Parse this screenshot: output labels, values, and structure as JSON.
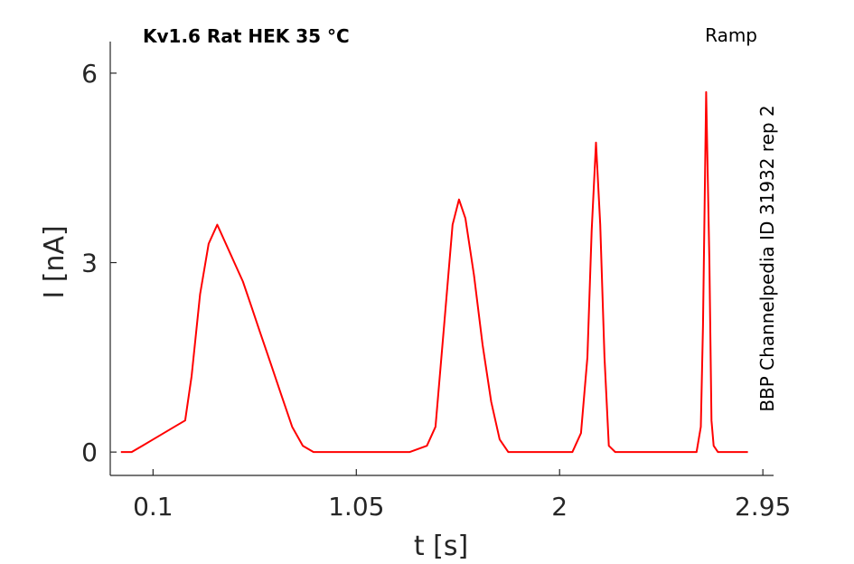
{
  "chart_data": {
    "type": "line",
    "title": "Kv1.6  Rat  HEK  35 °C",
    "subtitle": "Ramp",
    "side_note": "BBP Channelpedia ID 31932 rep 2",
    "xlabel": "t [s]",
    "ylabel": "I [nA]",
    "xlim": [
      -0.1,
      3.0
    ],
    "ylim": [
      -0.37,
      6.5
    ],
    "xticks": [
      0.1,
      1.05,
      2,
      2.95
    ],
    "xtick_labels": [
      "0.1",
      "1.05",
      "2",
      "2.95"
    ],
    "yticks": [
      0,
      3,
      6
    ],
    "ytick_labels": [
      "0",
      "3",
      "6"
    ],
    "grid": false,
    "line_color": "#ff0000",
    "series": [
      {
        "x": [
          -0.05,
          0.0,
          0.05,
          0.1,
          0.15,
          0.2,
          0.25,
          0.28,
          0.32,
          0.36,
          0.4,
          0.44,
          0.48,
          0.52,
          0.56,
          0.6,
          0.65,
          0.7,
          0.75,
          0.8,
          0.85,
          0.9,
          0.95,
          1.0,
          1.1,
          1.2,
          1.3,
          1.38,
          1.42,
          1.46,
          1.5,
          1.53,
          1.56,
          1.6,
          1.64,
          1.68,
          1.72,
          1.76,
          1.8,
          1.9,
          2.0,
          2.06,
          2.1,
          2.13,
          2.15,
          2.17,
          2.19,
          2.21,
          2.23,
          2.26,
          2.3,
          2.4,
          2.5,
          2.6,
          2.64,
          2.66,
          2.67,
          2.685,
          2.7,
          2.71,
          2.72,
          2.74,
          2.8,
          2.88
        ],
        "y": [
          0.0,
          0.0,
          0.1,
          0.2,
          0.3,
          0.4,
          0.5,
          1.2,
          2.5,
          3.3,
          3.6,
          3.3,
          3.0,
          2.7,
          2.3,
          1.9,
          1.4,
          0.9,
          0.4,
          0.1,
          0.0,
          0.0,
          0.0,
          0.0,
          0.0,
          0.0,
          0.0,
          0.1,
          0.4,
          2.0,
          3.6,
          4.0,
          3.7,
          2.8,
          1.7,
          0.8,
          0.2,
          0.0,
          0.0,
          0.0,
          0.0,
          0.0,
          0.3,
          1.5,
          3.5,
          4.9,
          3.6,
          1.5,
          0.1,
          0.0,
          0.0,
          0.0,
          0.0,
          0.0,
          0.0,
          0.4,
          2.0,
          5.7,
          3.0,
          0.5,
          0.1,
          0.0,
          0.0,
          0.0
        ]
      }
    ]
  }
}
